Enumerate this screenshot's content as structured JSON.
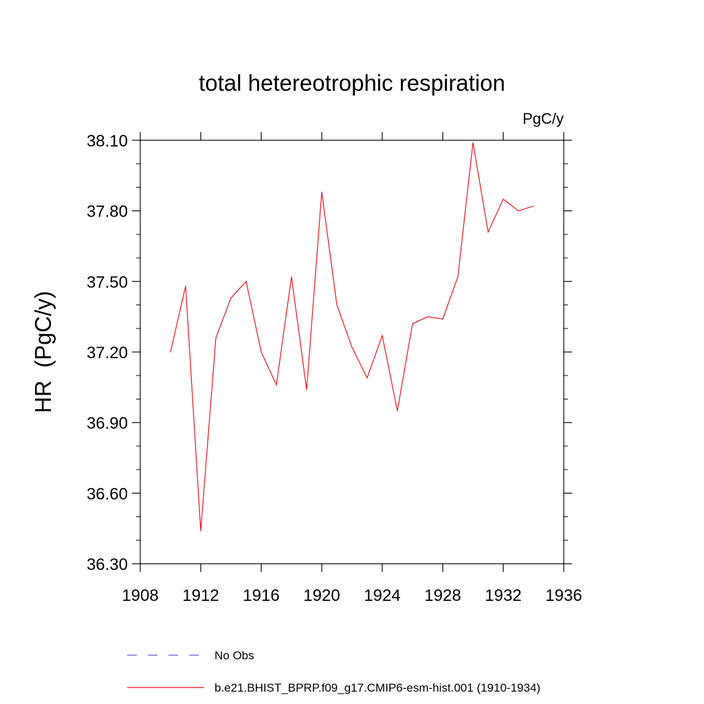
{
  "chart_data": {
    "type": "line",
    "title": "total hetereotrophic respiration",
    "units_label": "PgC/y",
    "ylabel": "HR  (PgC/y)",
    "xlabel": "",
    "xlim": [
      1908,
      1936
    ],
    "ylim": [
      36.3,
      38.1
    ],
    "x_ticks": [
      1908,
      1912,
      1916,
      1920,
      1924,
      1928,
      1932,
      1936
    ],
    "x_tick_labels": [
      "1908",
      "1912",
      "1916",
      "1920",
      "1924",
      "1928",
      "1932",
      "1936"
    ],
    "y_ticks": [
      36.3,
      36.6,
      36.9,
      37.2,
      37.5,
      37.8,
      38.1
    ],
    "y_tick_labels": [
      "36.30",
      "36.60",
      "36.90",
      "37.20",
      "37.50",
      "37.80",
      "38.10"
    ],
    "grid": false,
    "legend_position": "bottom",
    "series": [
      {
        "name": "b.e21.BHIST_BPRP.f09_g17.CMIP6-esm-hist.001 (1910-1934)",
        "color": "#e8121b",
        "style": "solid",
        "x": [
          1910,
          1911,
          1912,
          1913,
          1914,
          1915,
          1916,
          1917,
          1918,
          1919,
          1920,
          1921,
          1922,
          1923,
          1924,
          1925,
          1926,
          1927,
          1928,
          1929,
          1930,
          1931,
          1932,
          1933,
          1934
        ],
        "y": [
          37.2,
          37.48,
          36.44,
          37.26,
          37.43,
          37.5,
          37.2,
          37.06,
          37.52,
          37.04,
          37.88,
          37.4,
          37.22,
          37.09,
          37.27,
          36.95,
          37.32,
          37.35,
          37.34,
          37.52,
          38.09,
          37.71,
          37.85,
          37.8,
          37.82
        ]
      }
    ],
    "legend": [
      {
        "label": "No Obs",
        "color": "#5a5acd",
        "style": "dashed"
      },
      {
        "label": "b.e21.BHIST_BPRP.f09_g17.CMIP6-esm-hist.001 (1910-1934)",
        "color": "#e8121b",
        "style": "solid"
      }
    ]
  }
}
